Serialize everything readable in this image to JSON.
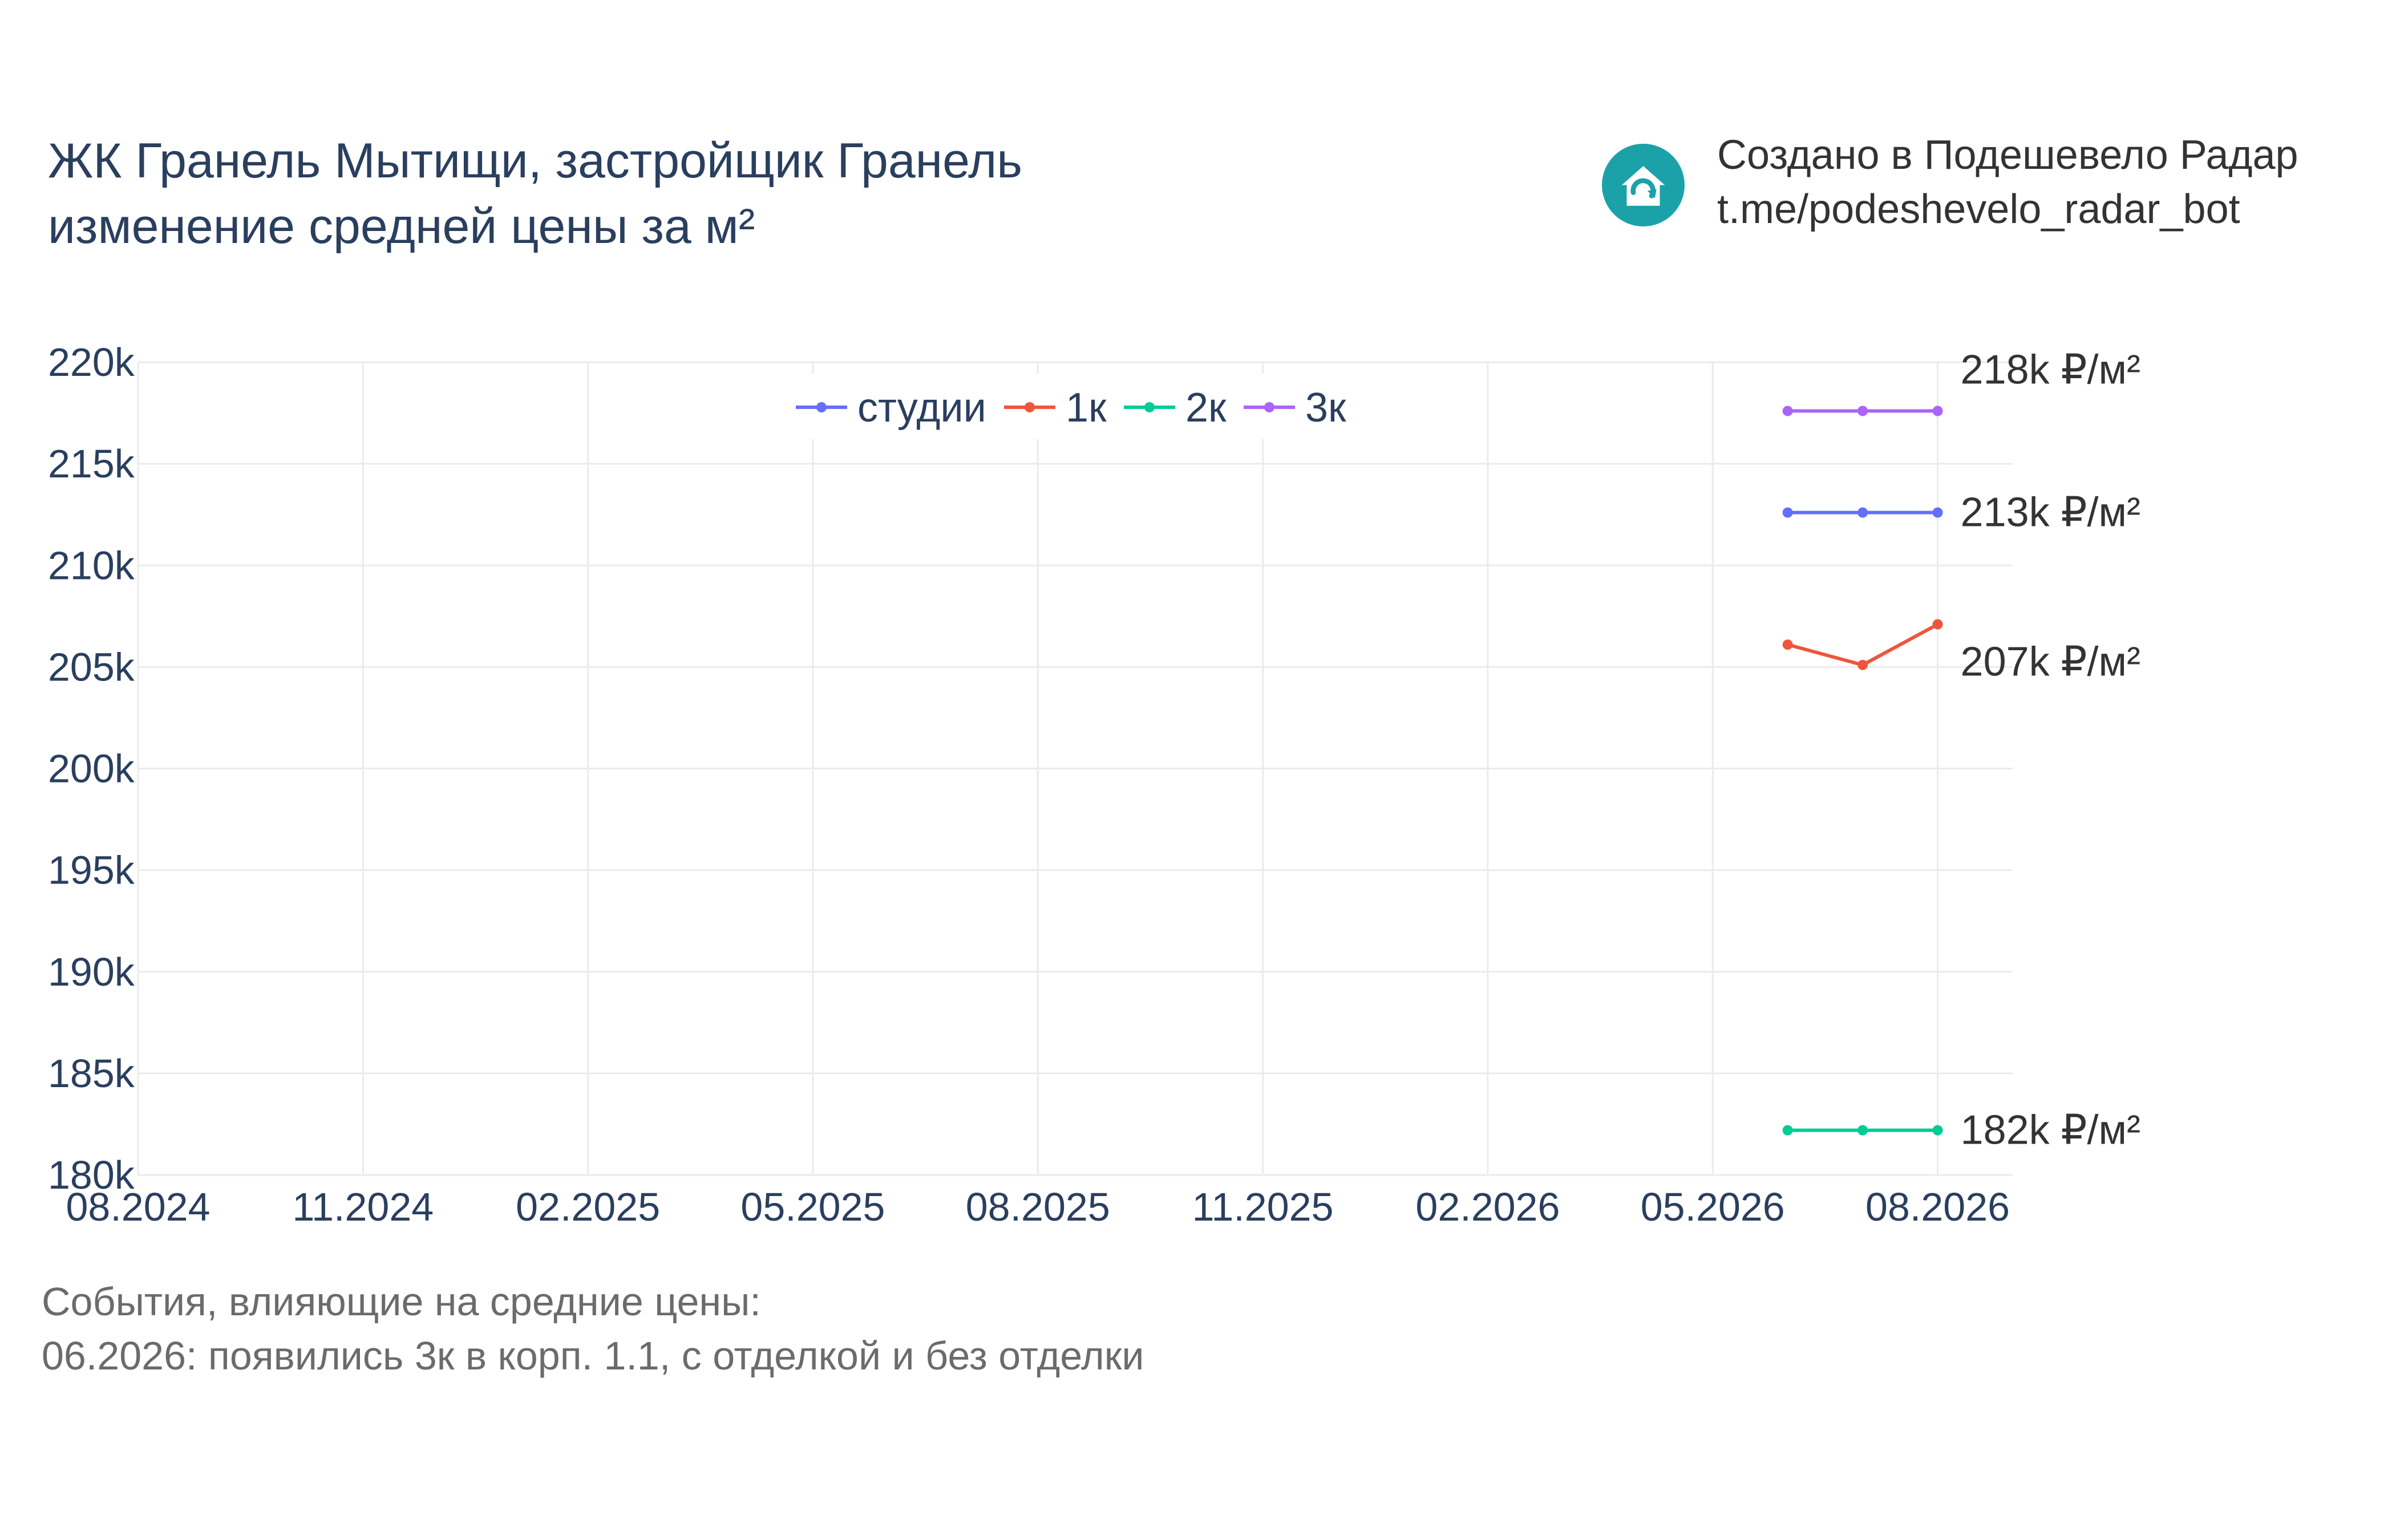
{
  "title_lines": [
    "ЖК Гранель Мытищи, застройщик Гранель",
    "изменение средней цены за м²"
  ],
  "branding": {
    "line1": "Создано в Подешевело Радар",
    "line2": "t.me/podeshevelo_radar_bot",
    "logo_icon": "house-refresh-icon",
    "logo_color": "#1aa2a8"
  },
  "events": {
    "heading": "События, влияющие на средние цены:",
    "items": [
      "06.2026: появились 3к в корп. 1.1, с отделкой и без отделки"
    ]
  },
  "chart_data": {
    "type": "line",
    "x_ticks": [
      "08.2024",
      "11.2024",
      "02.2025",
      "05.2025",
      "08.2025",
      "11.2025",
      "02.2026",
      "05.2026",
      "08.2026"
    ],
    "x_range": [
      "08.2024",
      "09.2026"
    ],
    "y_ticks": [
      180000,
      185000,
      190000,
      195000,
      200000,
      205000,
      210000,
      215000,
      220000
    ],
    "y_tick_labels": [
      "180k",
      "185k",
      "190k",
      "195k",
      "200k",
      "205k",
      "210k",
      "215k",
      "220k"
    ],
    "ylim": [
      180000,
      220000
    ],
    "grid": true,
    "legend_position": "top-center",
    "series": [
      {
        "name": "студии",
        "color": "#636efa",
        "x": [
          "06.2026",
          "07.2026",
          "08.2026"
        ],
        "values": [
          212600,
          212600,
          212600
        ],
        "end_label": "213k ₽/м²"
      },
      {
        "name": "1к",
        "color": "#ef553b",
        "x": [
          "06.2026",
          "07.2026",
          "08.2026"
        ],
        "values": [
          206100,
          205100,
          207100
        ],
        "end_label": "207k ₽/м²"
      },
      {
        "name": "2к",
        "color": "#00cc96",
        "x": [
          "06.2026",
          "07.2026",
          "08.2026"
        ],
        "values": [
          182200,
          182200,
          182200
        ],
        "end_label": "182k ₽/м²"
      },
      {
        "name": "3к",
        "color": "#ab63fa",
        "x": [
          "06.2026",
          "07.2026",
          "08.2026"
        ],
        "values": [
          217600,
          217600,
          217600
        ],
        "end_label": "218k ₽/м²"
      }
    ]
  }
}
